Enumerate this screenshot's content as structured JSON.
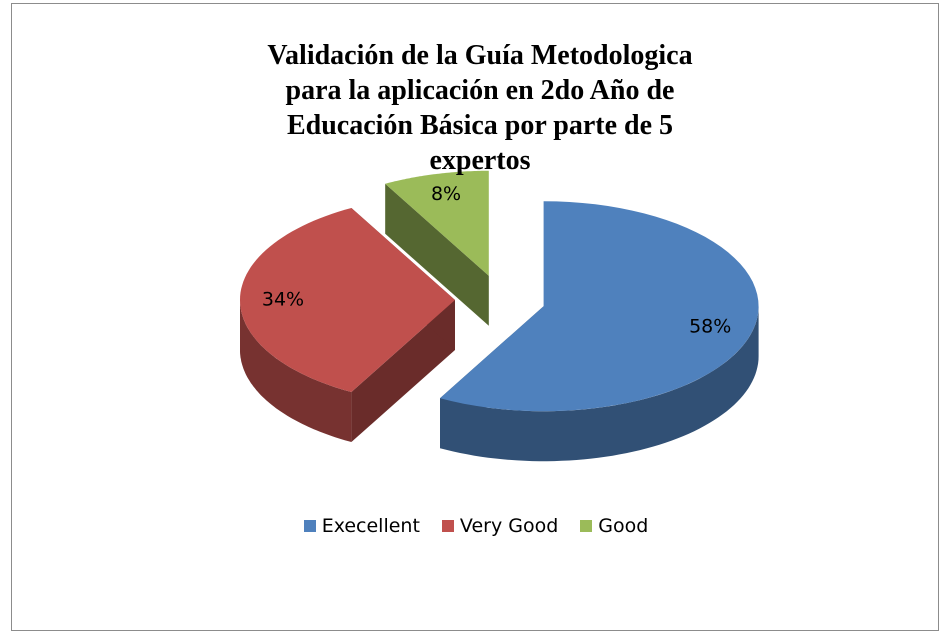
{
  "chart_data": {
    "type": "pie",
    "title": "Validación de la Guía Metodologica para la aplicación en 2do Año de Educación Básica por parte de 5 expertos",
    "categories": [
      "Execellent",
      "Very Good",
      "Good"
    ],
    "values": [
      58,
      34,
      8
    ],
    "value_labels": [
      "58%",
      "34%",
      "8%"
    ],
    "colors": [
      "#4f81bd",
      "#c0504d",
      "#9bbb59"
    ],
    "legend": "bottom"
  }
}
